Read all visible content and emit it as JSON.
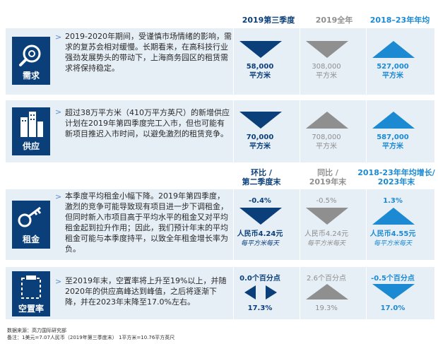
{
  "headers": {
    "col1": "2019第三季度",
    "col2": "2019全年",
    "col3": "2018–23年年均"
  },
  "headers2": {
    "col1": "环比 /\n第二季度末",
    "col2": "同比 /\n2019年末",
    "col3": "2018-23年年均增长/\n2023年末"
  },
  "rows": {
    "demand": {
      "label": "需求",
      "icon": "magnifier-icon",
      "text": "2019-2020年期间，受谨慎市场情绪的影响，需求的复苏会相对缓慢。长期看来，在高科技行业强劲发展势头的带动下，上海商务园区的租赁需求将保持稳定。",
      "c1": "58,000\n平方米",
      "c2": "308,000\n平方米",
      "c3": "527,000\n平方米"
    },
    "supply": {
      "label": "供应",
      "icon": "buildings-icon",
      "text": "超过38万平方米（410万平方英尺）的新增供应计划在2019年第四季度完工入市，但也可能有新项目推迟入市时间，以避免激烈的租赁竞争。",
      "c1": "70,000\n平方米",
      "c2": "708,000\n平方米",
      "c3": "587,000\n平方米"
    },
    "rent": {
      "label": "租金",
      "icon": "key-icon",
      "text": "本季度平均租金小幅下降。2019年第四季度，激烈的竞争可能导致现有项目进一步下调租金，但同时新入市项目高于平均水平的租金又对平均租金起到拉升作用；因此，我们预计年末的平均租金可能与本季度持平，以致全年租金增长率为负。",
      "c1_pct": "-0.4%",
      "c2_pct": "-0.5%",
      "c3_pct": "1.3%",
      "c1": "人民币4.24元",
      "c2": "人民币4.24元",
      "c3": "人民币4.55元",
      "unit": "每平方米每天"
    },
    "vacancy": {
      "label": "空置率",
      "icon": "vacancy-icon",
      "text": "至2019年末，空置率将上升至19%以上，并随2020年的供应高峰达到峰值，之后将逐渐下降，并在2023年末降至17.0%左右。",
      "c1_chg": "0.0个百分点",
      "c2_chg": "2.6个百分点",
      "c3_chg": "-0.5个百分点",
      "c1": "17.3%",
      "c2": "19.3%",
      "c3": "17.0%"
    }
  },
  "footer": {
    "source": "数据来源：高力国际研究部",
    "note": "备注：1美元=7.07人民币（2019年第三季度末）  1平方米=10.76平方英尺"
  },
  "colors": {
    "navy": "#0a3f7a",
    "blue": "#1b8ad3",
    "grey": "#8f8f8f",
    "panel": "#e6eef6"
  }
}
